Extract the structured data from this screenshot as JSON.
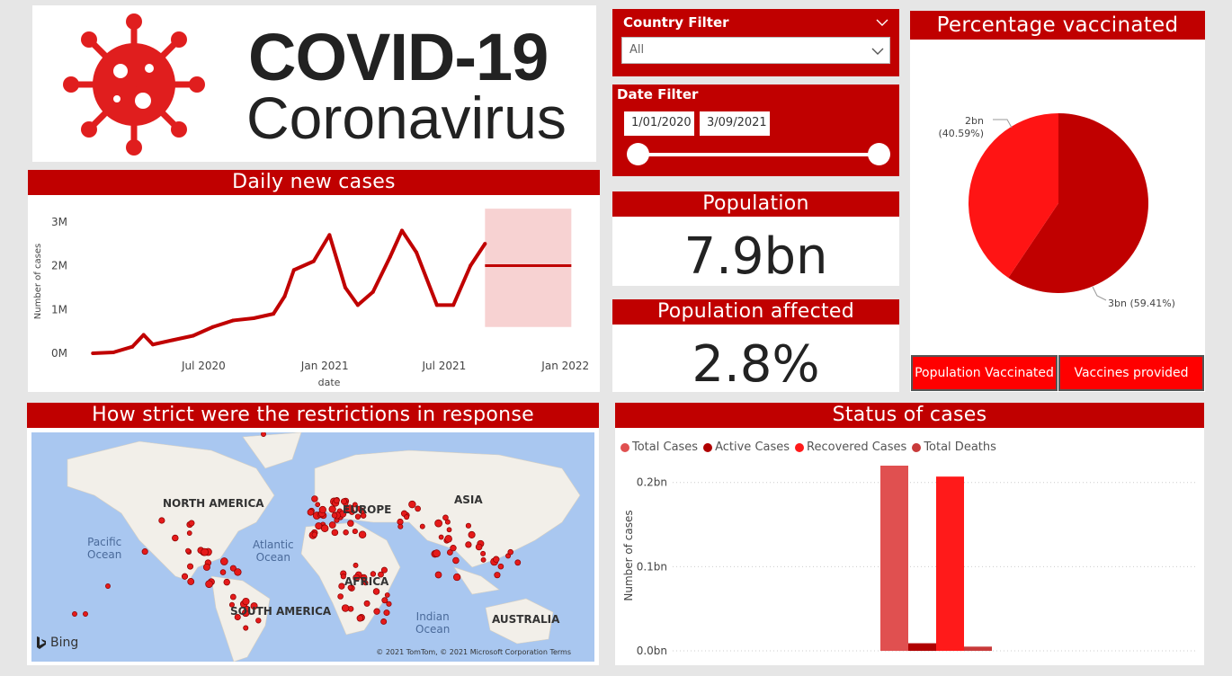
{
  "logo": {
    "line1": "COVID-19",
    "line2": "Coronavirus",
    "icon": "virus-icon"
  },
  "filters": {
    "country": {
      "title": "Country Filter",
      "value": "All"
    },
    "date": {
      "title": "Date Filter",
      "start": "1/01/2020",
      "end": "3/09/2021"
    }
  },
  "kpis": {
    "population": {
      "title": "Population",
      "value": "7.9bn"
    },
    "affected": {
      "title": "Population affected",
      "value": "2.8%"
    }
  },
  "colors": {
    "brand_red": "#c00000",
    "bright_red": "#ff0000",
    "series_red": "#c00000"
  },
  "icons": {
    "map_brand": "bing-icon",
    "filter_chevron": "chevron-down-icon"
  },
  "charts": {
    "daily": {
      "title": "Daily new cases"
    },
    "pie": {
      "title": "Percentage vaccinated",
      "tabs": [
        "Population Vaccinated",
        "Vaccines provided"
      ]
    },
    "map": {
      "title": "How strict were the restrictions in response",
      "labels": {
        "na": "NORTH AMERICA",
        "eu": "EUROPE",
        "asia": "ASIA",
        "africa": "AFRICA",
        "sa": "SOUTH AMERICA",
        "aus": "AUSTRALIA"
      },
      "oceans": {
        "pacific": "Pacific\nOcean",
        "atlantic": "Atlantic\nOcean",
        "indian": "Indian\nOcean"
      },
      "brand": "Bing",
      "attribution": "© 2021 TomTom, © 2021 Microsoft Corporation  Terms"
    },
    "status": {
      "title": "Status of cases"
    }
  },
  "chart_data": [
    {
      "type": "line",
      "title": "Daily new cases",
      "xlabel": "date",
      "ylabel": "Number of cases",
      "x_ticks": [
        "Jul 2020",
        "Jan 2021",
        "Jul 2021",
        "Jan 2022"
      ],
      "y_ticks": [
        "0M",
        "1M",
        "2M",
        "3M"
      ],
      "ylim": [
        0,
        3200000
      ],
      "series": [
        {
          "x": [
            "2020-01-15",
            "2020-02-15",
            "2020-03-15",
            "2020-04-01",
            "2020-04-15",
            "2020-05-15",
            "2020-06-15",
            "2020-07-15",
            "2020-08-15",
            "2020-09-15",
            "2020-10-15",
            "2020-11-01",
            "2020-11-15",
            "2020-12-15",
            "2021-01-08",
            "2021-02-01",
            "2021-02-20",
            "2021-03-15",
            "2021-04-10",
            "2021-04-28",
            "2021-05-20",
            "2021-06-20",
            "2021-07-15",
            "2021-08-10",
            "2021-09-01"
          ],
          "y": [
            0,
            20000,
            150000,
            420000,
            200000,
            300000,
            400000,
            600000,
            750000,
            800000,
            900000,
            1300000,
            1900000,
            2100000,
            2700000,
            1500000,
            1100000,
            1400000,
            2200000,
            2800000,
            2300000,
            1100000,
            1100000,
            2000000,
            2500000
          ]
        },
        {
          "name": "forecast",
          "x": [
            "2021-09-01",
            "2022-01-10"
          ],
          "y": [
            2000000,
            2000000
          ],
          "band": [
            600000,
            3300000
          ]
        }
      ]
    },
    {
      "type": "pie",
      "title": "Percentage vaccinated",
      "slices": [
        {
          "label": "3bn (59.41%)",
          "value": 59.41,
          "color": "#c00000"
        },
        {
          "label": "2bn (40.59%)",
          "value": 40.59,
          "color": "#ff1414"
        }
      ]
    },
    {
      "type": "bar",
      "title": "Status of cases",
      "ylabel": "Number of cases",
      "y_ticks": [
        "0.0bn",
        "0.1bn",
        "0.2bn"
      ],
      "ylim": [
        0,
        0.22
      ],
      "series": [
        {
          "name": "Total Cases",
          "color": "#e05050",
          "values": [
            0.22
          ]
        },
        {
          "name": "Active Cases",
          "color": "#b00000",
          "values": [
            0.009
          ]
        },
        {
          "name": "Recovered Cases",
          "color": "#ff1a1a",
          "values": [
            0.207
          ]
        },
        {
          "name": "Total Deaths",
          "color": "#c83a3a",
          "values": [
            0.005
          ]
        }
      ]
    }
  ]
}
